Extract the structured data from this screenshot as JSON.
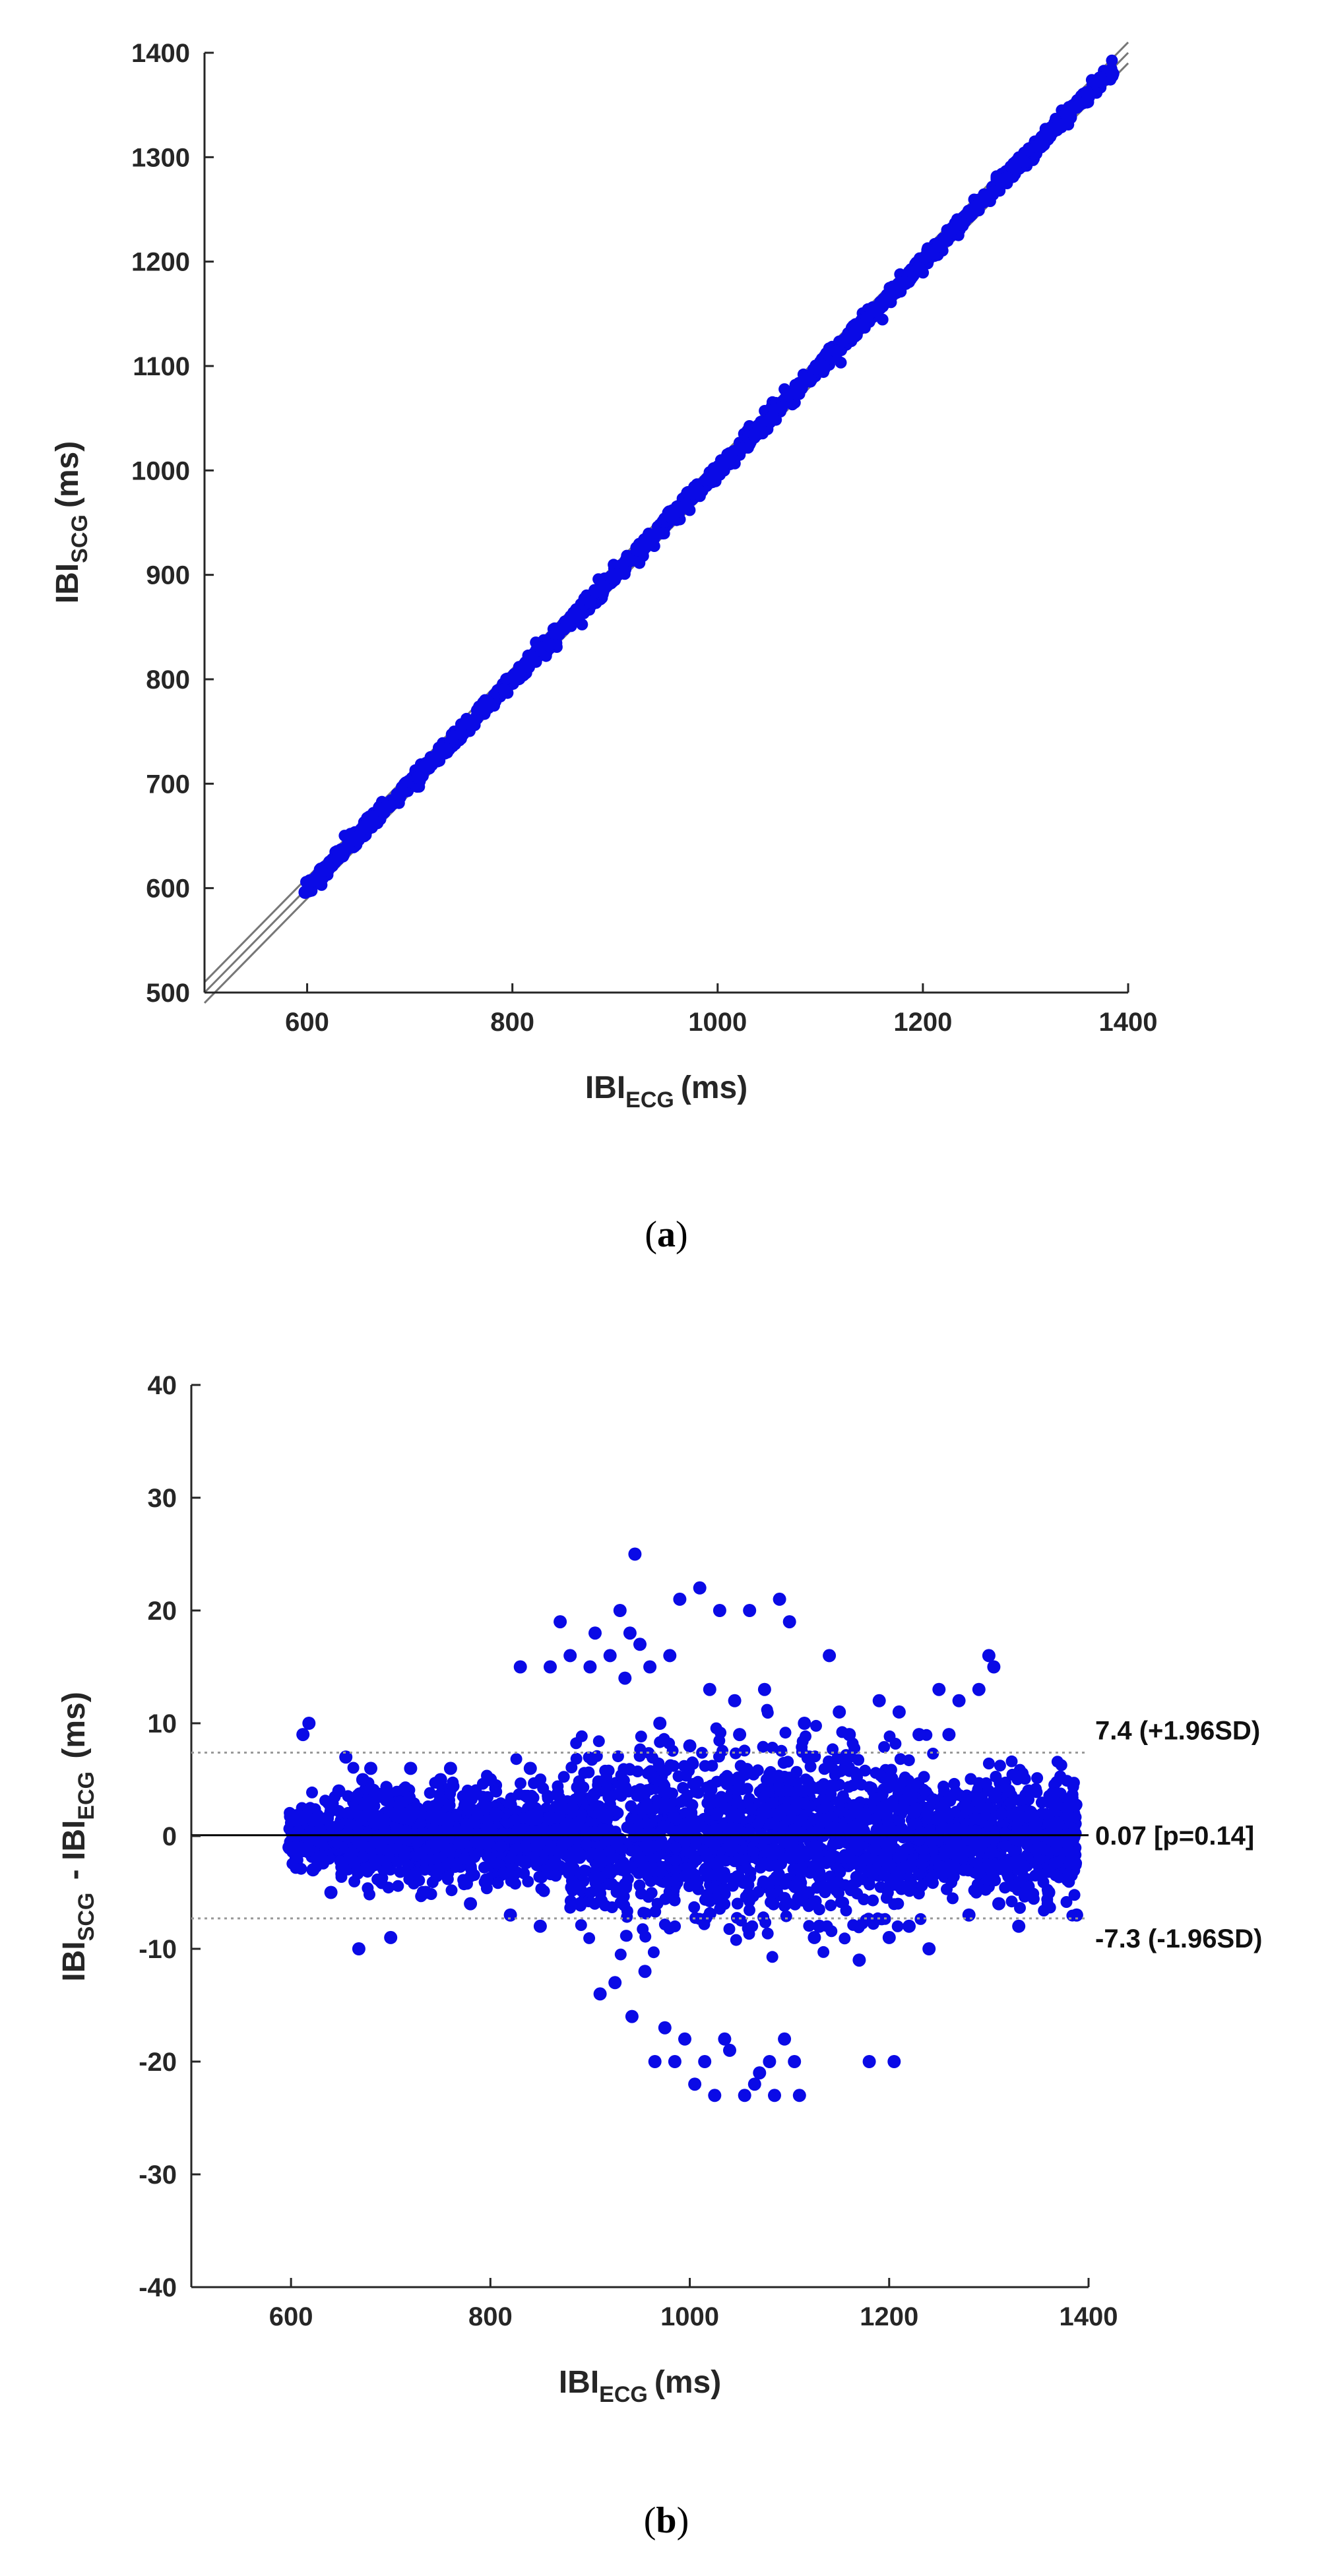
{
  "chart_data": [
    {
      "id": "a",
      "type": "scatter",
      "caption": "a",
      "xlabel": "IBI",
      "xlabel_sub": "ECG",
      "xlabel_units": "(ms)",
      "ylabel": "IBI",
      "ylabel_sub": "SCG",
      "ylabel_units": "(ms)",
      "xlim": [
        500,
        1400
      ],
      "ylim": [
        500,
        1400
      ],
      "xticks": [
        600,
        800,
        1000,
        1200,
        1400
      ],
      "yticks": [
        500,
        600,
        700,
        800,
        900,
        1000,
        1100,
        1200,
        1300,
        1400
      ],
      "grid": false,
      "point_color": "#0a0ae6",
      "reference_lines": [
        {
          "name": "identity",
          "slope": 1,
          "intercept": 0,
          "color": "#777777"
        },
        {
          "name": "upper-bound",
          "slope": 1,
          "intercept": 10,
          "color": "#777777"
        },
        {
          "name": "lower-bound",
          "slope": 1,
          "intercept": -10,
          "color": "#777777"
        }
      ],
      "series": [
        {
          "name": "IBI pairs",
          "x_range": [
            598,
            1385
          ],
          "ecg": [
            598,
            605,
            612,
            618,
            622,
            630,
            635,
            640,
            648,
            655,
            660,
            668,
            672,
            680,
            688,
            695,
            700,
            708,
            715,
            720,
            728,
            735,
            742,
            750,
            756,
            762,
            770,
            778,
            785,
            792,
            800,
            806,
            812,
            820,
            828,
            835,
            842,
            850,
            856,
            862,
            870,
            876,
            882,
            890,
            896,
            902,
            910,
            916,
            922,
            930,
            936,
            942,
            950,
            956,
            962,
            970,
            976,
            982,
            990,
            996,
            1002,
            1010,
            1016,
            1022,
            1030,
            1036,
            1042,
            1050,
            1056,
            1062,
            1070,
            1076,
            1082,
            1090,
            1096,
            1102,
            1110,
            1116,
            1122,
            1130,
            1136,
            1142,
            1150,
            1156,
            1162,
            1170,
            1176,
            1182,
            1190,
            1196,
            1202,
            1210,
            1216,
            1222,
            1230,
            1238,
            1245,
            1252,
            1260,
            1268,
            1275,
            1282,
            1290,
            1298,
            1305,
            1312,
            1320,
            1330,
            1340,
            1350,
            1360,
            1385
          ],
          "scg": [
            596,
            607,
            610,
            620,
            625,
            628,
            637,
            642,
            646,
            657,
            662,
            666,
            674,
            678,
            690,
            693,
            702,
            706,
            717,
            718,
            730,
            733,
            744,
            748,
            758,
            760,
            772,
            776,
            787,
            790,
            802,
            804,
            814,
            818,
            830,
            833,
            844,
            848,
            858,
            860,
            872,
            874,
            884,
            888,
            898,
            900,
            912,
            914,
            924,
            928,
            938,
            940,
            952,
            954,
            964,
            968,
            978,
            980,
            992,
            994,
            1004,
            1008,
            1018,
            1020,
            1032,
            1034,
            1044,
            1048,
            1058,
            1060,
            1072,
            1074,
            1084,
            1088,
            1098,
            1100,
            1112,
            1114,
            1124,
            1128,
            1138,
            1140,
            1152,
            1154,
            1164,
            1168,
            1178,
            1180,
            1192,
            1194,
            1204,
            1208,
            1218,
            1220,
            1232,
            1236,
            1247,
            1250,
            1262,
            1266,
            1277,
            1280,
            1292,
            1296,
            1307,
            1310,
            1322,
            1328,
            1342,
            1348,
            1362,
            1380
          ]
        }
      ]
    },
    {
      "id": "b",
      "type": "scatter",
      "caption": "b",
      "xlabel": "IBI",
      "xlabel_sub": "ECG",
      "xlabel_units": "(ms)",
      "ylabel_parts": [
        "IBI",
        "SCG",
        " - IBI",
        "ECG",
        " (ms)"
      ],
      "xlim": [
        500,
        1400
      ],
      "ylim": [
        -40,
        40
      ],
      "xticks": [
        600,
        800,
        1000,
        1200,
        1400
      ],
      "yticks": [
        -40,
        -30,
        -20,
        -10,
        0,
        10,
        20,
        30,
        40
      ],
      "grid": false,
      "point_color": "#0a0ae6",
      "reference_lines": [
        {
          "name": "upper-limit-line",
          "value": 7.4,
          "style": "dotted",
          "color": "#999999",
          "label": "7.4 (+1.96SD)"
        },
        {
          "name": "mean-line",
          "value": 0.07,
          "style": "solid",
          "color": "#000000",
          "label": "0.07 [p=0.14]"
        },
        {
          "name": "lower-limit-line",
          "value": -7.3,
          "style": "dotted",
          "color": "#999999",
          "label": "-7.3 (-1.96SD)"
        }
      ],
      "series": [
        {
          "name": "differences",
          "x_range": [
            598,
            1388
          ],
          "x": [
            598,
            612,
            618,
            622,
            640,
            648,
            655,
            660,
            668,
            672,
            680,
            690,
            700,
            710,
            720,
            735,
            750,
            760,
            780,
            800,
            820,
            830,
            840,
            850,
            860,
            870,
            880,
            890,
            900,
            905,
            910,
            920,
            925,
            930,
            935,
            940,
            942,
            945,
            950,
            955,
            960,
            965,
            970,
            975,
            980,
            985,
            990,
            995,
            1000,
            1005,
            1010,
            1015,
            1020,
            1025,
            1030,
            1035,
            1040,
            1045,
            1050,
            1055,
            1060,
            1065,
            1070,
            1075,
            1080,
            1085,
            1090,
            1095,
            1100,
            1105,
            1110,
            1115,
            1120,
            1125,
            1130,
            1140,
            1150,
            1160,
            1170,
            1180,
            1190,
            1200,
            1205,
            1210,
            1220,
            1230,
            1240,
            1250,
            1260,
            1270,
            1280,
            1290,
            1300,
            1305,
            1310,
            1320,
            1330,
            1340,
            1360,
            1388
          ],
          "y": [
            -1,
            9,
            10,
            -3,
            -5,
            4,
            7,
            -2,
            -10,
            5,
            6,
            -4,
            -9,
            3,
            6,
            -5,
            5,
            6,
            -6,
            5,
            -7,
            15,
            6,
            -8,
            15,
            19,
            16,
            -6,
            15,
            18,
            -14,
            16,
            -13,
            20,
            14,
            18,
            -16,
            25,
            17,
            -12,
            15,
            -20,
            10,
            -17,
            16,
            -20,
            21,
            -18,
            8,
            -22,
            22,
            -20,
            13,
            -23,
            20,
            -18,
            -19,
            12,
            9,
            -23,
            20,
            -22,
            -21,
            13,
            -20,
            -23,
            21,
            -18,
            19,
            -20,
            -23,
            10,
            7,
            -9,
            -8,
            16,
            11,
            9,
            -11,
            -20,
            12,
            -9,
            -20,
            11,
            -8,
            9,
            -10,
            13,
            9,
            12,
            -7,
            13,
            16,
            15,
            -6,
            4,
            -8,
            4,
            -5,
            -7
          ]
        }
      ]
    }
  ]
}
